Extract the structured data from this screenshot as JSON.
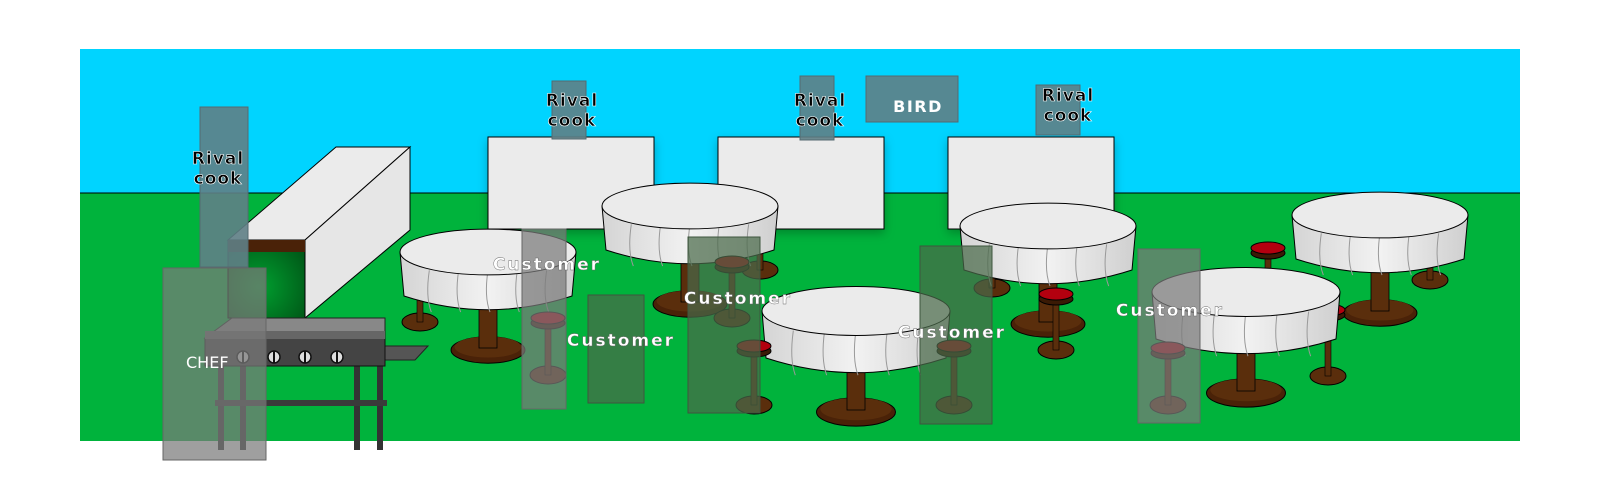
{
  "scene": {
    "sky_color": "#00d4ff",
    "grass_color": "#00b33c",
    "cloth_color": "#ebebeb",
    "wood_color": "#5a2e0c",
    "stool_seat_color": "#b3000f"
  },
  "labels": {
    "chef": "CHEF",
    "bird": "BIRD",
    "rival_line1": "Rival",
    "rival_line2": "cook",
    "customer": "Customer"
  }
}
